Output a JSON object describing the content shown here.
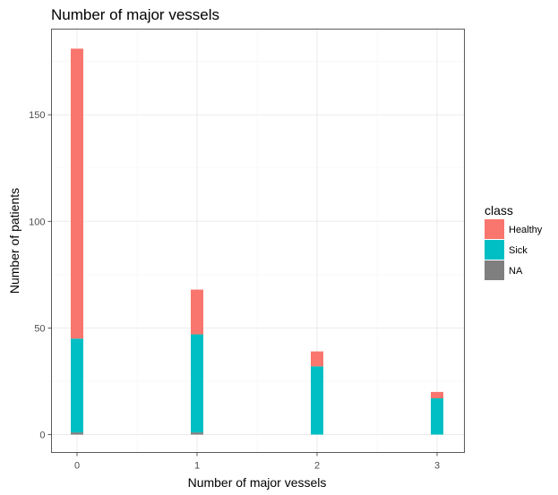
{
  "chart_data": {
    "type": "bar",
    "stacked": true,
    "title": "Number of major vessels",
    "xlabel": "Number of major vessels",
    "ylabel": "Number of patients",
    "x_ticks": [
      "0",
      "1",
      "2",
      "3"
    ],
    "y_ticks": [
      0,
      50,
      100,
      150
    ],
    "ylim": [
      0,
      181
    ],
    "grid": true,
    "legend": {
      "title": "class",
      "position": "right"
    },
    "categories": [
      "0",
      "1",
      "2",
      "3"
    ],
    "series": [
      {
        "name": "Healthy",
        "color": "#F8766D",
        "values": [
          136,
          21,
          7,
          3
        ]
      },
      {
        "name": "Sick",
        "color": "#00BFC4",
        "values": [
          44,
          46,
          32,
          17
        ]
      },
      {
        "name": "NA",
        "color": "#7F7F7F",
        "values": [
          1,
          1,
          0,
          0
        ]
      }
    ]
  }
}
